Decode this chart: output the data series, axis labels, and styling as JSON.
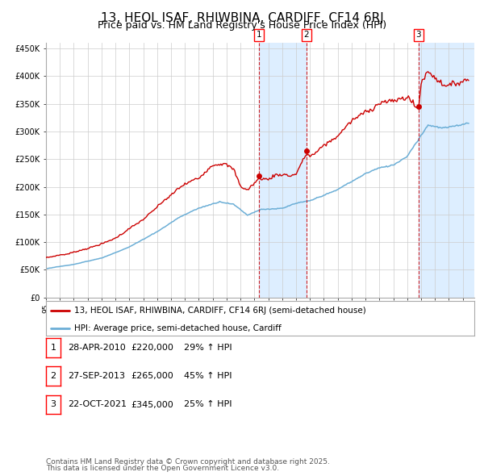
{
  "title": "13, HEOL ISAF, RHIWBINA, CARDIFF, CF14 6RJ",
  "subtitle": "Price paid vs. HM Land Registry's House Price Index (HPI)",
  "legend_line1": "13, HEOL ISAF, RHIWBINA, CARDIFF, CF14 6RJ (semi-detached house)",
  "legend_line2": "HPI: Average price, semi-detached house, Cardiff",
  "footer1": "Contains HM Land Registry data © Crown copyright and database right 2025.",
  "footer2": "This data is licensed under the Open Government Licence v3.0.",
  "transactions": [
    {
      "num": 1,
      "date": "28-APR-2010",
      "price": 220000,
      "pct": "29%",
      "dir": "↑",
      "label": "HPI",
      "date_dec": 2010.33
    },
    {
      "num": 2,
      "date": "27-SEP-2013",
      "price": 265000,
      "pct": "45%",
      "dir": "↑",
      "label": "HPI",
      "date_dec": 2013.75
    },
    {
      "num": 3,
      "date": "22-OCT-2021",
      "price": 345000,
      "pct": "25%",
      "dir": "↑",
      "label": "HPI",
      "date_dec": 2021.81
    }
  ],
  "hpi_color": "#6baed6",
  "price_color": "#cc0000",
  "vline_color": "#cc0000",
  "shade_color": "#ddeeff",
  "grid_color": "#cccccc",
  "bg_color": "#ffffff",
  "ylim": [
    0,
    460000
  ],
  "yticks": [
    0,
    50000,
    100000,
    150000,
    200000,
    250000,
    300000,
    350000,
    400000,
    450000
  ],
  "xlim_start": 1995.0,
  "xlim_end": 2025.83,
  "title_fontsize": 11,
  "subtitle_fontsize": 9,
  "tick_fontsize": 7,
  "legend_fontsize": 8,
  "footer_fontsize": 6.5
}
